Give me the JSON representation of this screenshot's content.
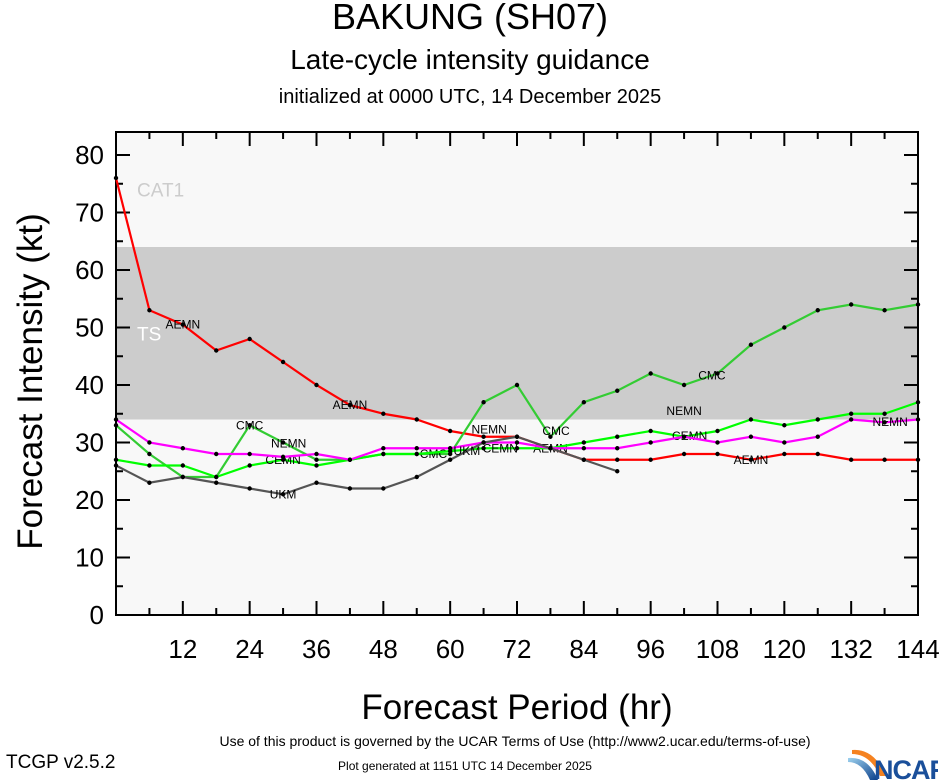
{
  "header": {
    "title": "BAKUNG (SH07)",
    "subtitle": "Late-cycle intensity guidance",
    "initialized": "initialized at 0000 UTC, 14 December 2025"
  },
  "footer": {
    "terms": "Use of this product is governed by the UCAR Terms of Use (http://www2.ucar.edu/terms-of-use)",
    "generated": "Plot generated at 1151 UTC   14 December 2025",
    "version": "TCGP v2.5.2",
    "logo": "NCAR"
  },
  "chart_data": {
    "type": "line",
    "title": "BAKUNG (SH07)",
    "xlabel": "Forecast Period (hr)",
    "ylabel": "Forecast Intensity (kt)",
    "xlim": [
      0,
      144
    ],
    "ylim": [
      0,
      84
    ],
    "xticks": [
      12,
      24,
      36,
      48,
      60,
      72,
      84,
      96,
      108,
      120,
      132,
      144
    ],
    "yticks": [
      0,
      10,
      20,
      30,
      40,
      50,
      60,
      70,
      80
    ],
    "grid": false,
    "background_color": "#f8f8f8",
    "bands": [
      {
        "name": "TS",
        "from": 34,
        "to": 64,
        "color": "#cccccc",
        "label_color": "#ffffff"
      },
      {
        "name": "CAT1",
        "from": 64,
        "to": 84,
        "color": "#f8f8f8",
        "label_color": "#cccccc"
      }
    ],
    "x": [
      0,
      6,
      12,
      18,
      24,
      30,
      36,
      42,
      48,
      54,
      60,
      66,
      72,
      78,
      84,
      90,
      96,
      102,
      108,
      114,
      120,
      126,
      132,
      138,
      144
    ],
    "series": [
      {
        "name": "AEMN",
        "color": "#ff0000",
        "values": [
          76,
          53,
          50.5,
          46,
          48,
          44,
          40,
          36.5,
          35,
          34,
          32,
          31,
          31,
          29,
          27,
          27,
          27,
          28,
          28,
          27,
          28,
          28,
          27,
          27,
          27
        ],
        "label_at_hours": [
          12,
          42,
          78,
          114
        ]
      },
      {
        "name": "CMC",
        "color": "#33cc33",
        "values": [
          33,
          28,
          24,
          24,
          33,
          30,
          27,
          27,
          28,
          28,
          28,
          37,
          40,
          31,
          37,
          39,
          42,
          40,
          42,
          47,
          50,
          53,
          54,
          53,
          54
        ],
        "label_at_hours": [
          24,
          57,
          79,
          107
        ]
      },
      {
        "name": "CEMN",
        "color": "#00ff00",
        "values": [
          27,
          26,
          26,
          24,
          26,
          27,
          26,
          27,
          28,
          28,
          28.5,
          29,
          29,
          29,
          30,
          31,
          32,
          31,
          32,
          34,
          33,
          34,
          35,
          35,
          37
        ],
        "label_at_hours": [
          30,
          69,
          103
        ]
      },
      {
        "name": "NEMN",
        "color": "#ff00ff",
        "values": [
          34,
          30,
          29,
          28,
          28,
          27.5,
          28,
          27,
          29,
          29,
          29,
          30,
          30,
          29,
          29,
          29,
          30,
          31,
          30,
          31,
          30,
          31,
          34,
          33.5,
          34
        ],
        "label_at_hours": [
          31,
          67,
          102,
          139
        ]
      },
      {
        "name": "UKM",
        "color": "#555555",
        "values": [
          26,
          23,
          24,
          23,
          22,
          21,
          23,
          22,
          22,
          24,
          27,
          30,
          31,
          29,
          27,
          25,
          null,
          null,
          null,
          null,
          null,
          null,
          null,
          null,
          null
        ],
        "label_at_hours": [
          30,
          63
        ]
      }
    ]
  }
}
